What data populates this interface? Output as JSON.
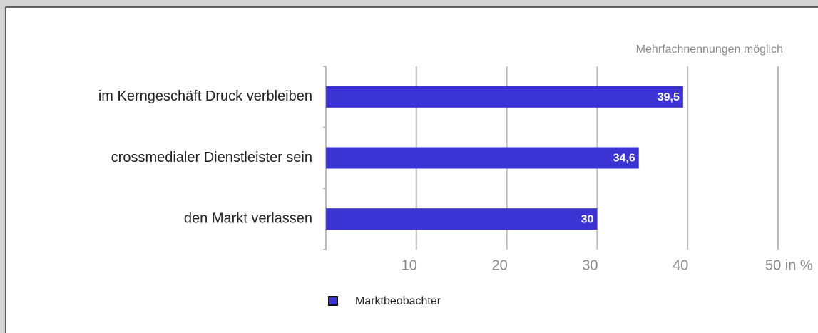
{
  "chart_data": {
    "type": "barh",
    "annotation": "Mehrfachnennungen möglich",
    "categories": [
      "im Kerngeschäft Druck verbleiben",
      "crossmedialer Dienstleister sein",
      "den Markt verlassen"
    ],
    "series": [
      {
        "name": "Marktbeobachter",
        "color": "#3b33d4",
        "values": [
          39.5,
          34.6,
          30
        ],
        "value_labels": [
          "39,5",
          "34,6",
          "30"
        ]
      }
    ],
    "xlim": [
      0,
      50
    ],
    "xticks": [
      10,
      20,
      30,
      40,
      {
        "value": 50,
        "label": "50 in %"
      }
    ],
    "grid": true
  }
}
